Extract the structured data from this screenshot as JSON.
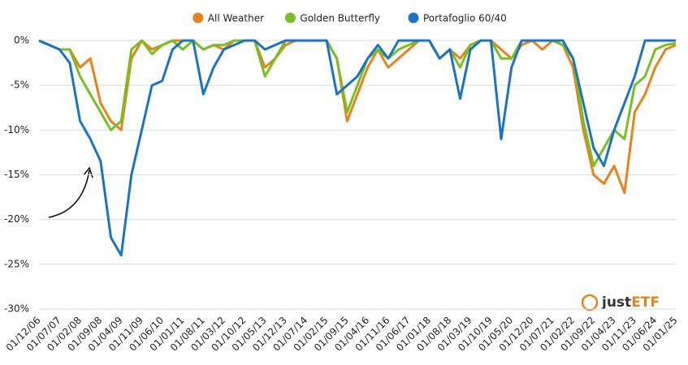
{
  "chart_data": {
    "type": "line",
    "categories": [
      "01/12/06",
      null,
      "01/07/07",
      null,
      "01/02/08",
      null,
      "01/09/08",
      null,
      "01/04/09",
      null,
      "01/11/09",
      null,
      "01/06/10",
      null,
      "01/01/11",
      null,
      "01/08/11",
      null,
      "01/03/12",
      null,
      "01/10/12",
      null,
      "01/05/13",
      null,
      "01/12/13",
      null,
      "01/07/14",
      null,
      "01/02/15",
      null,
      "01/09/15",
      null,
      "01/04/16",
      null,
      "01/11/16",
      null,
      "01/06/17",
      null,
      "01/01/18",
      null,
      "01/08/18",
      null,
      "01/03/19",
      null,
      "01/10/19",
      null,
      "01/05/20",
      null,
      "01/12/20",
      null,
      "01/07/21",
      null,
      "01/02/22",
      null,
      "01/09/22",
      null,
      "01/04/23",
      null,
      "01/11/23",
      null,
      "01/06/24",
      null,
      "01/01/25"
    ],
    "series": [
      {
        "name": "All Weather",
        "color": "#e8821e",
        "values": [
          0,
          -0.5,
          -1,
          -1,
          -3,
          -2,
          -7,
          -9,
          -10,
          -2,
          0,
          -1,
          -0.5,
          0,
          0,
          0,
          -1,
          -0.5,
          -1,
          0,
          0,
          0,
          -3,
          -2,
          -0.5,
          0,
          0,
          0,
          0,
          -2,
          -9,
          -6,
          -3,
          -1,
          -3,
          -2,
          -1,
          0,
          0,
          -2,
          -1,
          -2,
          -0.5,
          0,
          0,
          -1,
          -2,
          -0.5,
          0,
          -1,
          0,
          -0.5,
          -3,
          -10,
          -15,
          -16,
          -14,
          -17,
          -8,
          -6,
          -3,
          -1,
          -0.5
        ]
      },
      {
        "name": "Golden Butterfly",
        "color": "#76c021",
        "values": [
          0,
          -0.5,
          -1,
          -1,
          -4,
          -6,
          -8,
          -10,
          -9,
          -1,
          0,
          -1.5,
          -0.5,
          0,
          -1,
          0,
          -1,
          -0.5,
          -0.5,
          0,
          0,
          0,
          -4,
          -2,
          0,
          0,
          0,
          0,
          0,
          -2,
          -8,
          -5,
          -2,
          -1,
          -2,
          -1,
          -0.5,
          0,
          0,
          -2,
          -1,
          -3,
          -0.5,
          0,
          0,
          -2,
          -2,
          0,
          0,
          0,
          0,
          -0.5,
          -2,
          -9,
          -14,
          -12,
          -10,
          -11,
          -5,
          -4,
          -1,
          -0.5,
          -0.3
        ]
      },
      {
        "name": "Portafoglio 60/40",
        "color": "#1a73c7",
        "values": [
          0,
          -0.5,
          -1,
          -2.5,
          -9,
          -11,
          -13.5,
          -22,
          -24,
          -15,
          -10,
          -5,
          -4.5,
          -1,
          0,
          0,
          -6,
          -3,
          -1,
          -0.5,
          0,
          0,
          -1,
          -0.5,
          0,
          0,
          0,
          0,
          0,
          -6,
          -5,
          -4,
          -2,
          -0.5,
          -2,
          0,
          0,
          0,
          0,
          -2,
          -1,
          -6.5,
          -1,
          0,
          0,
          -11,
          -3,
          0,
          0,
          0,
          0,
          0,
          -2,
          -7,
          -12,
          -14,
          -10,
          -7,
          -4,
          0,
          0,
          0,
          0
        ]
      }
    ],
    "ylim": [
      -30,
      0
    ],
    "yticks": [
      {
        "value": 0,
        "label": "0%"
      },
      {
        "value": -5,
        "label": "-5%"
      },
      {
        "value": -10,
        "label": "-10%"
      },
      {
        "value": -15,
        "label": "-15%"
      },
      {
        "value": -20,
        "label": "-20%"
      },
      {
        "value": -25,
        "label": "-25%"
      },
      {
        "value": -30,
        "label": "-30%"
      }
    ],
    "grid": true,
    "legend": "top",
    "watermark": {
      "prefix": "just",
      "suffix": "ETF"
    }
  }
}
